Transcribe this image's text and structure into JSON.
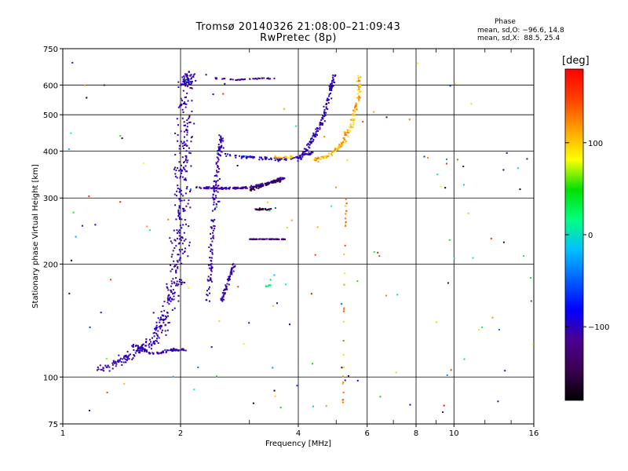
{
  "header": {
    "title": "Tromsø 20140326 21:08:00–21:09:43",
    "subtitle": "RwPretec (8p)",
    "phase_heading": "Phase",
    "phase_o": "mean, sd,O: −96.6, 14.8",
    "phase_x": "mean, sd,X:  88.5, 25.4"
  },
  "colorbar": {
    "unit": "[deg]",
    "ticks": [
      {
        "value": 100,
        "label": "100"
      },
      {
        "value": 0,
        "label": "0"
      },
      {
        "value": -100,
        "label": "−100"
      }
    ],
    "range": [
      -180,
      180
    ],
    "colors": [
      "#000000",
      "#3a0050",
      "#4b0090",
      "#0000ff",
      "#0060ff",
      "#00c0ff",
      "#00ff80",
      "#00e000",
      "#ffff00",
      "#ffa000",
      "#ff4000",
      "#ff0000"
    ]
  },
  "chart_data": {
    "type": "scatter",
    "title": "Tromsø 20140326 21:08:00–21:09:43",
    "subtitle": "RwPretec (8p)",
    "xlabel": "Frequency [MHz]",
    "ylabel": "Stationary phase Virtual Height [km]",
    "xscale": "log",
    "yscale": "log",
    "xlim": [
      1,
      16
    ],
    "ylim": [
      75,
      750
    ],
    "grid": true,
    "xticks": [
      {
        "value": 1,
        "label": "1"
      },
      {
        "value": 2,
        "label": "2"
      },
      {
        "value": 4,
        "label": "4"
      },
      {
        "value": 6,
        "label": "6"
      },
      {
        "value": 8,
        "label": "8"
      },
      {
        "value": 10,
        "label": "10"
      },
      {
        "value": 16,
        "label": "16"
      }
    ],
    "xminor": [
      3,
      5,
      7,
      9,
      12,
      14
    ],
    "yticks": [
      {
        "value": 75,
        "label": "75"
      },
      {
        "value": 100,
        "label": "100"
      },
      {
        "value": 200,
        "label": "200"
      },
      {
        "value": 300,
        "label": "300"
      },
      {
        "value": 400,
        "label": "400"
      },
      {
        "value": 500,
        "label": "500"
      },
      {
        "value": 600,
        "label": "600"
      },
      {
        "value": 750,
        "label": "750"
      }
    ],
    "color_variable": "phase [deg]",
    "clusters": [
      {
        "name": "o-trace",
        "phase": -105,
        "jitter": 10,
        "count": 520,
        "poly": [
          [
            1.25,
            104
          ],
          [
            1.5,
            114
          ],
          [
            1.7,
            125
          ],
          [
            1.85,
            150
          ],
          [
            1.95,
            180
          ],
          [
            2.0,
            250
          ],
          [
            2.02,
            350
          ],
          [
            2.05,
            450
          ],
          [
            2.08,
            600
          ],
          [
            2.09,
            640
          ]
        ],
        "xspread": 0.14,
        "yspread": 0.06
      },
      {
        "name": "o-lower-band",
        "phase": -105,
        "jitter": 8,
        "count": 80,
        "poly": [
          [
            1.5,
            122
          ],
          [
            1.7,
            115
          ],
          [
            1.9,
            118
          ],
          [
            2.05,
            118
          ]
        ],
        "xspread": 0.05,
        "yspread": 0.03
      },
      {
        "name": "trace-2.4",
        "phase": -105,
        "jitter": 10,
        "count": 160,
        "poly": [
          [
            2.35,
            160
          ],
          [
            2.4,
            220
          ],
          [
            2.45,
            300
          ],
          [
            2.5,
            380
          ],
          [
            2.55,
            440
          ]
        ],
        "xspread": 0.05,
        "yspread": 0.06
      },
      {
        "name": "trace-2.6",
        "phase": -105,
        "jitter": 10,
        "count": 60,
        "poly": [
          [
            2.55,
            160
          ],
          [
            2.65,
            180
          ],
          [
            2.75,
            200
          ]
        ],
        "xspread": 0.03,
        "yspread": 0.04
      },
      {
        "name": "plateau-320",
        "phase": -110,
        "jitter": 15,
        "count": 180,
        "poly": [
          [
            2.2,
            320
          ],
          [
            2.6,
            318
          ],
          [
            3.0,
            320
          ],
          [
            3.4,
            330
          ],
          [
            3.7,
            340
          ]
        ],
        "xspread": 0.04,
        "yspread": 0.02
      },
      {
        "name": "purple-320",
        "phase": -150,
        "jitter": 10,
        "count": 60,
        "poly": [
          [
            3.0,
            315
          ],
          [
            3.3,
            325
          ],
          [
            3.6,
            335
          ]
        ],
        "xspread": 0.03,
        "yspread": 0.02
      },
      {
        "name": "purple-280",
        "phase": -150,
        "jitter": 10,
        "count": 30,
        "poly": [
          [
            3.1,
            280
          ],
          [
            3.4,
            280
          ]
        ],
        "xspread": 0.02,
        "yspread": 0.015
      },
      {
        "name": "band-233",
        "phase": -130,
        "jitter": 15,
        "count": 60,
        "poly": [
          [
            3.0,
            233
          ],
          [
            3.7,
            233
          ]
        ],
        "xspread": 0.01,
        "yspread": 0.006
      },
      {
        "name": "mid-380",
        "phase": -100,
        "jitter": 15,
        "count": 100,
        "poly": [
          [
            2.6,
            390
          ],
          [
            3.0,
            385
          ],
          [
            3.5,
            380
          ],
          [
            4.0,
            385
          ],
          [
            4.4,
            400
          ]
        ],
        "xspread": 0.05,
        "yspread": 0.03
      },
      {
        "name": "top-625",
        "phase": -110,
        "jitter": 10,
        "count": 40,
        "poly": [
          [
            2.45,
            625
          ],
          [
            2.8,
            620
          ],
          [
            3.2,
            625
          ],
          [
            3.5,
            625
          ]
        ],
        "xspread": 0.02,
        "yspread": 0.01
      },
      {
        "name": "rise-4.8",
        "phase": -100,
        "jitter": 15,
        "count": 140,
        "poly": [
          [
            4.0,
            380
          ],
          [
            4.3,
            420
          ],
          [
            4.6,
            480
          ],
          [
            4.8,
            560
          ],
          [
            4.95,
            640
          ]
        ],
        "xspread": 0.04,
        "yspread": 0.04
      },
      {
        "name": "x-trace",
        "phase": 110,
        "jitter": 25,
        "count": 140,
        "poly": [
          [
            4.4,
            380
          ],
          [
            4.8,
            390
          ],
          [
            5.2,
            420
          ],
          [
            5.5,
            480
          ],
          [
            5.7,
            560
          ],
          [
            5.75,
            640
          ]
        ],
        "xspread": 0.04,
        "yspread": 0.04
      },
      {
        "name": "yellow-385",
        "phase": 100,
        "jitter": 20,
        "count": 30,
        "poly": [
          [
            3.5,
            385
          ],
          [
            3.9,
            385
          ]
        ],
        "xspread": 0.03,
        "yspread": 0.02
      },
      {
        "name": "green-175",
        "phase": 20,
        "jitter": 10,
        "count": 8,
        "poly": [
          [
            3.3,
            174
          ],
          [
            3.4,
            176
          ]
        ],
        "xspread": 0.01,
        "yspread": 0.01
      },
      {
        "name": "vertical-5.2",
        "phase": 120,
        "jitter": 30,
        "count": 30,
        "poly": [
          [
            5.2,
            85
          ],
          [
            5.25,
            200
          ],
          [
            5.3,
            300
          ]
        ],
        "xspread": 0.01,
        "yspread": 0.03
      },
      {
        "name": "sparse-noise",
        "phase": 0,
        "jitter": 180,
        "count": 140,
        "poly": [
          [
            1.0,
            80
          ],
          [
            16,
            700
          ]
        ],
        "xspread": 0.6,
        "yspread": 0.5
      }
    ]
  }
}
